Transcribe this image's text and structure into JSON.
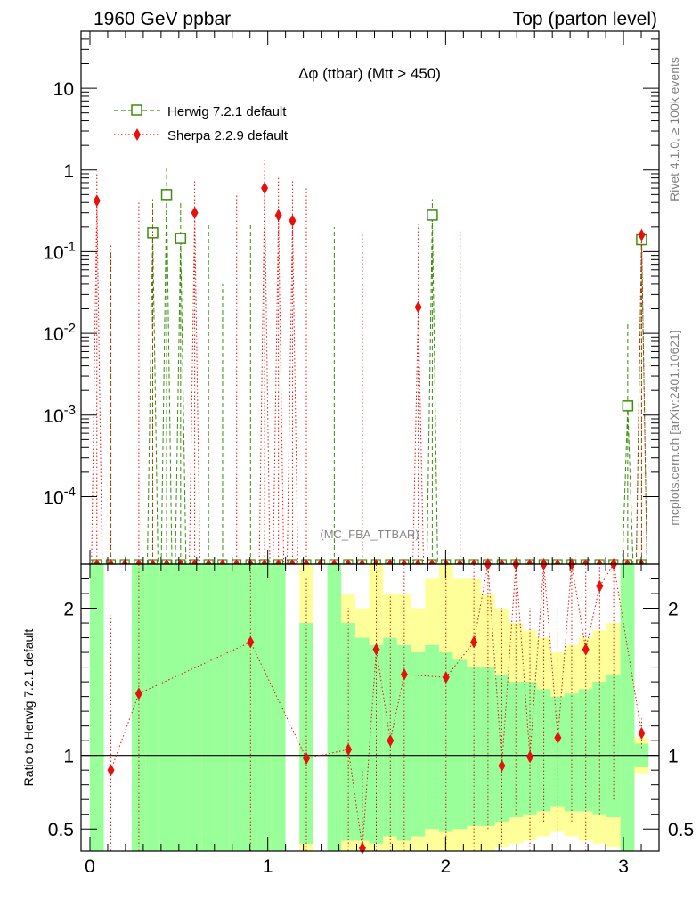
{
  "header": {
    "left_title": "1960 GeV ppbar",
    "right_title": "Top (parton level)"
  },
  "side_labels": {
    "rivet": "Rivet 4.1.0, ≥ 100k events",
    "mcplots": "mcplots.cern.ch [arXiv:2401.10621]"
  },
  "chart_data": [
    {
      "type": "line",
      "title": "Δφ (ttbar) (Mtt > 450)",
      "analysis_label": "(MC_FBA_TTBAR)",
      "xlabel": "",
      "ylabel": "",
      "yscale": "log",
      "xlim": [
        -0.05,
        3.2
      ],
      "ylim": [
        1.5e-05,
        50
      ],
      "y_tick_labels": [
        "10",
        "1",
        "10^-1",
        "10^-2",
        "10^-3",
        "10^-4"
      ],
      "legend": {
        "placement": "top-left",
        "entries": [
          "Herwig 7.2.1 default",
          "Sherpa 2.2.9 default"
        ]
      },
      "series": [
        {
          "name": "Herwig 7.2.1 default",
          "color": "#3a8f0a",
          "marker": "open-square",
          "line_style": "dashed",
          "points": [
            {
              "x": 0.353,
              "y": 0.17,
              "err_hi": 0.44
            },
            {
              "x": 0.431,
              "y": 0.5,
              "err_hi": 1.05
            },
            {
              "x": 0.51,
              "y": 0.145,
              "err_hi": 0.42
            },
            {
              "x": 1.925,
              "y": 0.28,
              "err_hi": 0.44
            },
            {
              "x": 3.024,
              "y": 0.0013,
              "err_hi": 0.014
            },
            {
              "x": 3.102,
              "y": 0.14,
              "err_hi": 0.17
            }
          ],
          "upper_errors_only": [
            {
              "x": 0.118,
              "y_hi": 0.1
            },
            {
              "x": 0.667,
              "y_hi": 0.23
            },
            {
              "x": 0.746,
              "y_hi": 0.04
            },
            {
              "x": 0.903,
              "y_hi": 0.23
            },
            {
              "x": 1.374,
              "y_hi": 0.2
            }
          ]
        },
        {
          "name": "Sherpa 2.2.9 default",
          "color": "#e8100a",
          "marker": "filled-diamond",
          "line_style": "dotted",
          "points": [
            {
              "x": 0.039,
              "y": 0.42,
              "err_hi": 0.95
            },
            {
              "x": 0.589,
              "y": 0.3,
              "err_hi": 0.75
            },
            {
              "x": 0.982,
              "y": 0.6,
              "err_hi": 1.3
            },
            {
              "x": 1.06,
              "y": 0.28,
              "err_hi": 0.85
            },
            {
              "x": 1.139,
              "y": 0.24,
              "err_hi": 0.75
            },
            {
              "x": 1.846,
              "y": 0.021,
              "err_hi": 0.22
            },
            {
              "x": 3.102,
              "y": 0.16,
              "err_hi": 0.19
            }
          ],
          "upper_errors_only": [
            {
              "x": 0.118,
              "y_hi": 0.12
            },
            {
              "x": 0.275,
              "y_hi": 0.4
            },
            {
              "x": 0.353,
              "y_hi": 0.33
            },
            {
              "x": 0.825,
              "y_hi": 0.5
            },
            {
              "x": 1.217,
              "y_hi": 0.6
            },
            {
              "x": 1.532,
              "y_hi": 0.17
            },
            {
              "x": 2.082,
              "y_hi": 0.19
            }
          ]
        }
      ]
    },
    {
      "type": "line",
      "title": "",
      "ylabel": "Ratio to Herwig 7.2.1 default",
      "xlabel": "",
      "xlim": [
        -0.05,
        3.2
      ],
      "ylim": [
        0.35,
        2.3
      ],
      "x_ticks": [
        0,
        1,
        2,
        3
      ],
      "y_ticks": [
        0.5,
        1,
        2
      ],
      "reference_line": 1,
      "band_bins": [
        {
          "x0": 0.0,
          "x1": 0.078,
          "green": [
            0.35,
            2.3
          ],
          "yellow": [
            0.35,
            2.3
          ]
        },
        {
          "x0": 0.235,
          "x1": 0.314,
          "green": [
            0.35,
            2.3
          ],
          "yellow": [
            0.35,
            2.3
          ]
        },
        {
          "x0": 0.314,
          "x1": 0.392,
          "green": [
            0.35,
            2.3
          ],
          "yellow": [
            0.35,
            2.3
          ]
        },
        {
          "x0": 0.392,
          "x1": 0.471,
          "green": [
            0.35,
            2.3
          ],
          "yellow": [
            0.35,
            2.3
          ]
        },
        {
          "x0": 0.471,
          "x1": 0.549,
          "green": [
            0.35,
            2.3
          ],
          "yellow": [
            0.35,
            2.3
          ]
        },
        {
          "x0": 0.549,
          "x1": 0.628,
          "green": [
            0.35,
            2.3
          ],
          "yellow": [
            0.35,
            2.3
          ]
        },
        {
          "x0": 0.628,
          "x1": 0.706,
          "green": [
            0.35,
            2.3
          ],
          "yellow": [
            0.35,
            2.3
          ]
        },
        {
          "x0": 0.706,
          "x1": 0.785,
          "green": [
            0.35,
            2.3
          ],
          "yellow": [
            0.35,
            2.3
          ]
        },
        {
          "x0": 0.785,
          "x1": 0.864,
          "green": [
            0.35,
            2.3
          ],
          "yellow": [
            0.35,
            2.3
          ]
        },
        {
          "x0": 0.864,
          "x1": 0.942,
          "green": [
            0.35,
            2.3
          ],
          "yellow": [
            0.35,
            2.3
          ]
        },
        {
          "x0": 0.942,
          "x1": 1.021,
          "green": [
            0.35,
            2.3
          ],
          "yellow": [
            0.35,
            2.3
          ]
        },
        {
          "x0": 1.021,
          "x1": 1.099,
          "green": [
            0.35,
            2.3
          ],
          "yellow": [
            0.35,
            2.3
          ]
        },
        {
          "x0": 1.178,
          "x1": 1.256,
          "green": [
            0.4,
            1.9
          ],
          "yellow": [
            0.35,
            2.3
          ]
        },
        {
          "x0": 1.335,
          "x1": 1.413,
          "green": [
            0.35,
            2.3
          ],
          "yellow": [
            0.35,
            2.3
          ]
        },
        {
          "x0": 1.413,
          "x1": 1.492,
          "green": [
            0.42,
            1.9
          ],
          "yellow": [
            0.35,
            2.1
          ]
        },
        {
          "x0": 1.492,
          "x1": 1.57,
          "green": [
            0.42,
            1.8
          ],
          "yellow": [
            0.35,
            2.0
          ]
        },
        {
          "x0": 1.57,
          "x1": 1.649,
          "green": [
            0.4,
            1.75
          ],
          "yellow": [
            0.35,
            2.3
          ]
        },
        {
          "x0": 1.649,
          "x1": 1.727,
          "green": [
            0.45,
            1.8
          ],
          "yellow": [
            0.35,
            2.1
          ]
        },
        {
          "x0": 1.727,
          "x1": 1.806,
          "green": [
            0.42,
            1.75
          ],
          "yellow": [
            0.35,
            2.1
          ]
        },
        {
          "x0": 1.806,
          "x1": 1.884,
          "green": [
            0.45,
            1.7
          ],
          "yellow": [
            0.35,
            2.0
          ]
        },
        {
          "x0": 1.884,
          "x1": 1.963,
          "green": [
            0.5,
            1.75
          ],
          "yellow": [
            0.35,
            2.2
          ]
        },
        {
          "x0": 1.963,
          "x1": 2.041,
          "green": [
            0.48,
            1.7
          ],
          "yellow": [
            0.35,
            2.3
          ]
        },
        {
          "x0": 2.041,
          "x1": 2.12,
          "green": [
            0.5,
            1.65
          ],
          "yellow": [
            0.35,
            2.2
          ]
        },
        {
          "x0": 2.12,
          "x1": 2.198,
          "green": [
            0.52,
            1.6
          ],
          "yellow": [
            0.35,
            2.2
          ]
        },
        {
          "x0": 2.198,
          "x1": 2.277,
          "green": [
            0.52,
            1.6
          ],
          "yellow": [
            0.35,
            2.1
          ]
        },
        {
          "x0": 2.277,
          "x1": 2.355,
          "green": [
            0.55,
            1.55
          ],
          "yellow": [
            0.38,
            2.0
          ]
        },
        {
          "x0": 2.355,
          "x1": 2.434,
          "green": [
            0.58,
            1.5
          ],
          "yellow": [
            0.4,
            1.9
          ]
        },
        {
          "x0": 2.434,
          "x1": 2.512,
          "green": [
            0.6,
            1.5
          ],
          "yellow": [
            0.42,
            1.85
          ]
        },
        {
          "x0": 2.512,
          "x1": 2.591,
          "green": [
            0.62,
            1.45
          ],
          "yellow": [
            0.45,
            1.8
          ]
        },
        {
          "x0": 2.591,
          "x1": 2.669,
          "green": [
            0.65,
            1.4
          ],
          "yellow": [
            0.48,
            1.7
          ]
        },
        {
          "x0": 2.669,
          "x1": 2.748,
          "green": [
            0.62,
            1.42
          ],
          "yellow": [
            0.45,
            1.75
          ]
        },
        {
          "x0": 2.748,
          "x1": 2.826,
          "green": [
            0.62,
            1.45
          ],
          "yellow": [
            0.42,
            1.8
          ]
        },
        {
          "x0": 2.826,
          "x1": 2.905,
          "green": [
            0.6,
            1.5
          ],
          "yellow": [
            0.4,
            1.85
          ]
        },
        {
          "x0": 2.905,
          "x1": 2.983,
          "green": [
            0.58,
            1.55
          ],
          "yellow": [
            0.38,
            1.9
          ]
        },
        {
          "x0": 2.983,
          "x1": 3.062,
          "green": [
            0.35,
            2.3
          ],
          "yellow": [
            0.35,
            2.3
          ]
        },
        {
          "x0": 3.062,
          "x1": 3.141,
          "green": [
            0.92,
            1.08
          ],
          "yellow": [
            0.88,
            1.12
          ]
        }
      ],
      "series": [
        {
          "name": "Sherpa 2.2.9 default",
          "color": "#e8100a",
          "points": [
            {
              "x": 0.118,
              "y": 0.9,
              "err_lo": 0.35,
              "err_hi": 1.95
            },
            {
              "x": 0.275,
              "y": 1.42,
              "err_lo": 0.35,
              "err_hi": 2.3
            },
            {
              "x": 0.903,
              "y": 1.77,
              "err_lo": 0.35,
              "err_hi": 2.3
            },
            {
              "x": 1.217,
              "y": 0.98,
              "err_lo": 0.35,
              "err_hi": 2.2
            },
            {
              "x": 1.453,
              "y": 1.04,
              "err_lo": 0.35,
              "err_hi": 2.0
            },
            {
              "x": 1.532,
              "y": 0.37,
              "err_lo": 0.35,
              "err_hi": 0.9
            },
            {
              "x": 1.61,
              "y": 1.72,
              "err_lo": 0.35,
              "err_hi": 2.3
            },
            {
              "x": 1.689,
              "y": 1.1,
              "err_lo": 0.35,
              "err_hi": 2.1
            },
            {
              "x": 1.767,
              "y": 1.55,
              "err_lo": 0.35,
              "err_hi": 2.3
            },
            {
              "x": 2.002,
              "y": 1.53,
              "err_lo": 0.35,
              "err_hi": 2.3
            },
            {
              "x": 2.159,
              "y": 1.77,
              "err_lo": 0.35,
              "err_hi": 2.3
            },
            {
              "x": 2.238,
              "y": 2.3,
              "err_lo": 0.5,
              "err_hi": 2.3
            },
            {
              "x": 2.316,
              "y": 0.93,
              "err_lo": 0.35,
              "err_hi": 2.0
            },
            {
              "x": 2.395,
              "y": 2.3,
              "err_lo": 0.6,
              "err_hi": 2.3
            },
            {
              "x": 2.474,
              "y": 0.99,
              "err_lo": 0.35,
              "err_hi": 2.0
            },
            {
              "x": 2.552,
              "y": 2.3,
              "err_lo": 0.55,
              "err_hi": 2.3
            },
            {
              "x": 2.631,
              "y": 1.12,
              "err_lo": 0.35,
              "err_hi": 2.0
            },
            {
              "x": 2.709,
              "y": 2.3,
              "err_lo": 0.55,
              "err_hi": 2.3
            },
            {
              "x": 2.788,
              "y": 1.72,
              "err_lo": 0.35,
              "err_hi": 2.3
            },
            {
              "x": 2.866,
              "y": 2.15,
              "err_lo": 0.6,
              "err_hi": 2.3
            },
            {
              "x": 2.945,
              "y": 2.3,
              "err_lo": 0.7,
              "err_hi": 2.3
            },
            {
              "x": 3.102,
              "y": 1.15,
              "err_lo": 1.05,
              "err_hi": 1.25
            }
          ]
        }
      ]
    }
  ]
}
